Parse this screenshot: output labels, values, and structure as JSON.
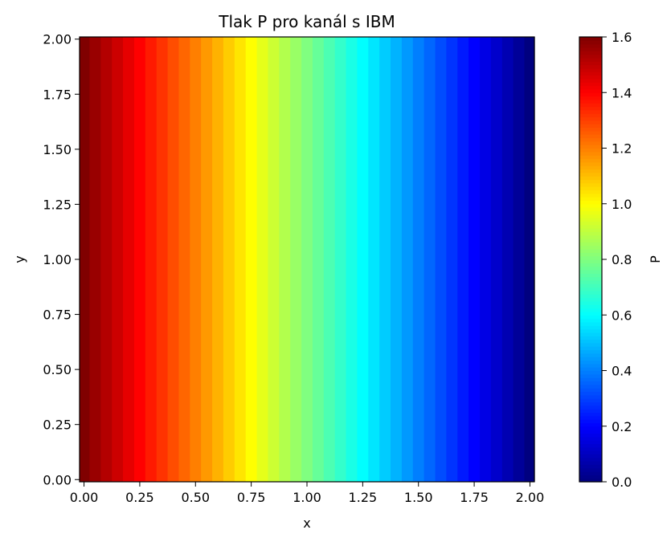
{
  "chart_data": {
    "type": "heatmap",
    "title": "Tlak P pro kanál s IBM",
    "xlabel": "x",
    "ylabel": "y",
    "colorbar_label": "P",
    "colormap": "jet",
    "xlim": [
      -0.02,
      2.02
    ],
    "ylim": [
      -0.01,
      2.01
    ],
    "x_ticks": [
      0.0,
      0.25,
      0.5,
      0.75,
      1.0,
      1.25,
      1.5,
      1.75,
      2.0
    ],
    "x_tick_labels": [
      "0.00",
      "0.25",
      "0.50",
      "0.75",
      "1.00",
      "1.25",
      "1.50",
      "1.75",
      "2.00"
    ],
    "y_ticks": [
      0.0,
      0.25,
      0.5,
      0.75,
      1.0,
      1.25,
      1.5,
      1.75,
      2.0
    ],
    "y_tick_labels": [
      "0.00",
      "0.25",
      "0.50",
      "0.75",
      "1.00",
      "1.25",
      "1.50",
      "1.75",
      "2.00"
    ],
    "colorbar_range": [
      0.0,
      1.6
    ],
    "colorbar_ticks": [
      0.0,
      0.2,
      0.4,
      0.6,
      0.8,
      1.0,
      1.2,
      1.4,
      1.6
    ],
    "colorbar_tick_labels": [
      "0.0",
      "0.2",
      "0.4",
      "0.6",
      "0.8",
      "1.0",
      "1.2",
      "1.4",
      "1.6"
    ],
    "field": {
      "description_of_values": "pressure decreases linearly with x, constant in y",
      "p_at_x_min": 1.6,
      "p_at_x_max": 0.0,
      "x_min": 0.0,
      "x_max": 2.0,
      "columns": 41
    }
  }
}
